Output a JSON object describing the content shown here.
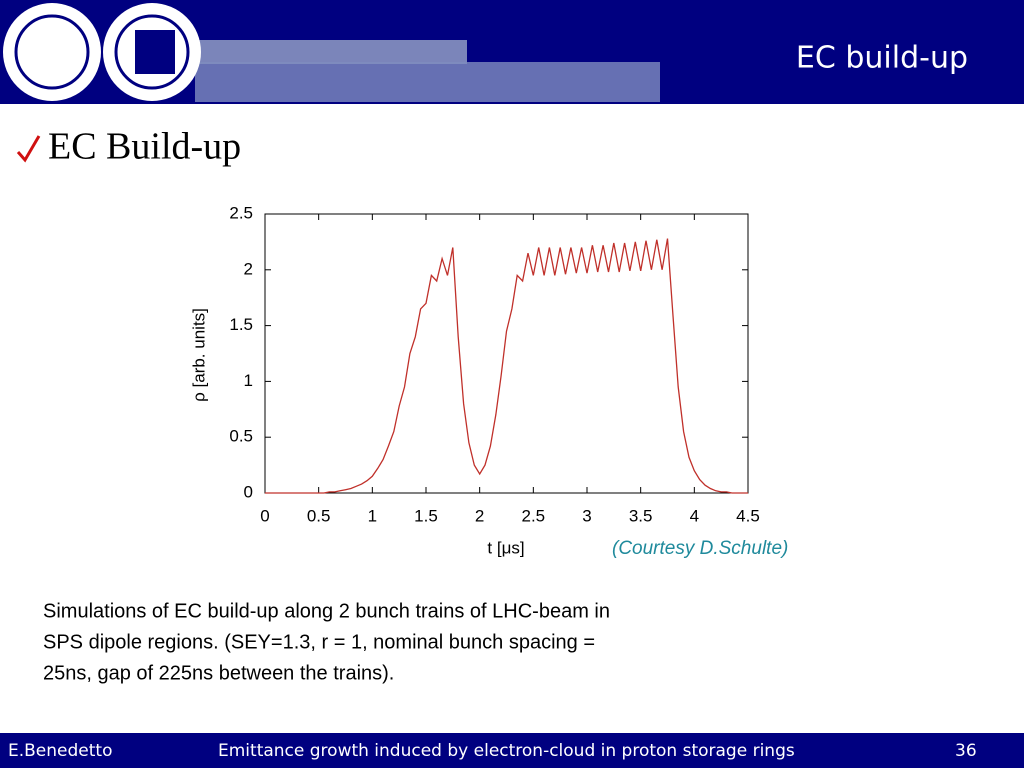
{
  "header": {
    "title": "EC build-up"
  },
  "heading": "EC Build-up",
  "chart_data": {
    "type": "line",
    "xlabel": "t [μs]",
    "ylabel": "ρ [arb. units]",
    "annotation": "(Courtesy D.Schulte)",
    "x": [
      0,
      0.05,
      0.1,
      0.15,
      0.2,
      0.25,
      0.3,
      0.35,
      0.4,
      0.45,
      0.5,
      0.55,
      0.6,
      0.65,
      0.7,
      0.75,
      0.8,
      0.85,
      0.9,
      0.95,
      1,
      1.05,
      1.1,
      1.15,
      1.2,
      1.25,
      1.3,
      1.35,
      1.4,
      1.45,
      1.5,
      1.55,
      1.6,
      1.65,
      1.7,
      1.75,
      1.8,
      1.85,
      1.9,
      1.95,
      2,
      2.05,
      2.1,
      2.15,
      2.2,
      2.25,
      2.3,
      2.35,
      2.4,
      2.45,
      2.5,
      2.55,
      2.6,
      2.65,
      2.7,
      2.75,
      2.8,
      2.85,
      2.9,
      2.95,
      3,
      3.05,
      3.1,
      3.15,
      3.2,
      3.25,
      3.3,
      3.35,
      3.4,
      3.45,
      3.5,
      3.55,
      3.6,
      3.65,
      3.7,
      3.75,
      3.8,
      3.85,
      3.9,
      3.95,
      4,
      4.05,
      4.1,
      4.15,
      4.2,
      4.25,
      4.3,
      4.35,
      4.4,
      4.45,
      4.5
    ],
    "values": [
      0,
      0,
      0,
      0,
      0,
      0,
      0,
      0,
      0,
      0,
      0,
      0,
      0.01,
      0.01,
      0.02,
      0.03,
      0.04,
      0.06,
      0.08,
      0.11,
      0.15,
      0.22,
      0.3,
      0.42,
      0.55,
      0.78,
      0.95,
      1.25,
      1.4,
      1.65,
      1.7,
      1.95,
      1.9,
      2.1,
      1.95,
      2.2,
      1.4,
      0.8,
      0.45,
      0.25,
      0.17,
      0.25,
      0.42,
      0.7,
      1.05,
      1.45,
      1.65,
      1.95,
      1.9,
      2.15,
      1.95,
      2.2,
      1.95,
      2.2,
      1.95,
      2.2,
      1.96,
      2.2,
      1.97,
      2.2,
      1.97,
      2.22,
      1.98,
      2.22,
      1.98,
      2.24,
      1.98,
      2.24,
      1.99,
      2.25,
      1.99,
      2.26,
      2,
      2.27,
      2,
      2.28,
      1.6,
      0.95,
      0.55,
      0.32,
      0.2,
      0.12,
      0.07,
      0.04,
      0.02,
      0.01,
      0.01,
      0,
      0,
      0,
      0
    ],
    "color": "#c0302a",
    "xlim": [
      0,
      4.5
    ],
    "ylim": [
      0,
      2.5
    ],
    "xticks": [
      0,
      0.5,
      1,
      1.5,
      2,
      2.5,
      3,
      3.5,
      4,
      4.5
    ],
    "yticks": [
      0,
      0.5,
      1,
      1.5,
      2,
      2.5
    ]
  },
  "caption": [
    "Simulations of EC build-up along 2 bunch trains of LHC-beam in",
    "SPS dipole regions. (SEY=1.3, r = 1, nominal bunch spacing =",
    "25ns, gap of 225ns between the trains)."
  ],
  "footer": {
    "author": "E.Benedetto",
    "talk": "Emittance growth induced by electron-cloud in proton storage rings",
    "page": "36"
  }
}
